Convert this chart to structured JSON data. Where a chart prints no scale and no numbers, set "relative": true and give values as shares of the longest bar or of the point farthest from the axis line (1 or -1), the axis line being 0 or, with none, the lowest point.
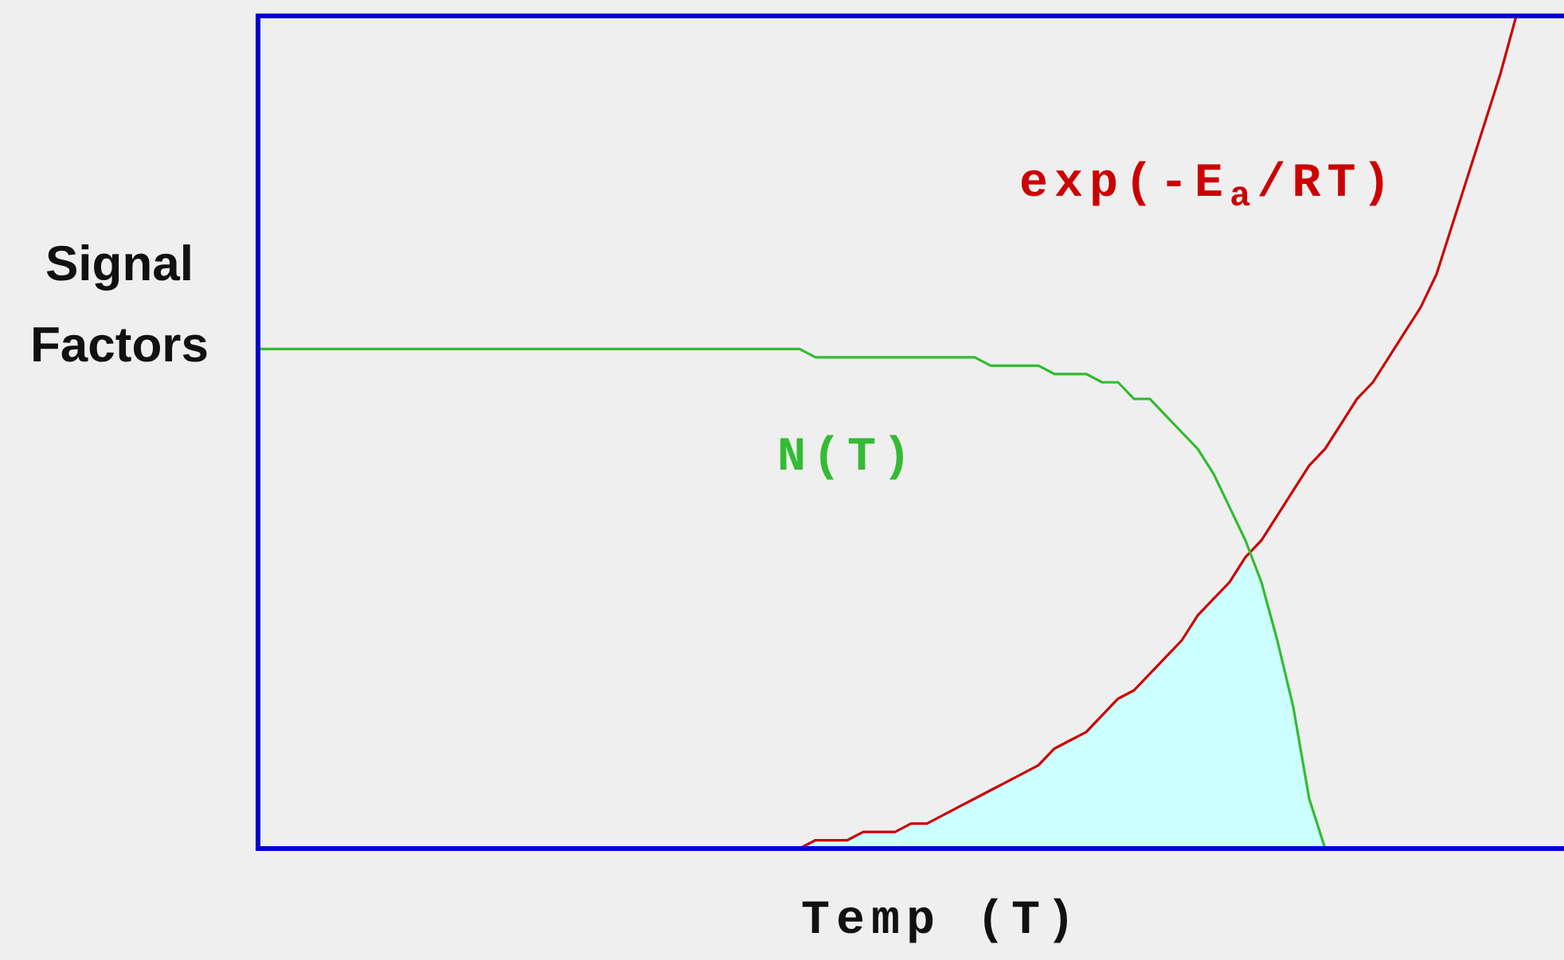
{
  "chart_data": {
    "type": "line",
    "relative": true,
    "xlabel": "Temp (T)",
    "ylabel": "Signal Factors",
    "categories": [
      null,
      null,
      null,
      null,
      null,
      null,
      null,
      null,
      null,
      null,
      null,
      null,
      null,
      null,
      null,
      null,
      null,
      null,
      null,
      null,
      null,
      null,
      null,
      null,
      null,
      null,
      null,
      null,
      null,
      null,
      null,
      null,
      null,
      null,
      null,
      null,
      null,
      null,
      null,
      null,
      null,
      null,
      null,
      null,
      null,
      null,
      null,
      null,
      null,
      null,
      null,
      null,
      null,
      null,
      null,
      null,
      null,
      null,
      null,
      null,
      null,
      null,
      null,
      null,
      null,
      null,
      null,
      null,
      null,
      null,
      null,
      null,
      null,
      null,
      null,
      null,
      null,
      null,
      null,
      null,
      null,
      null,
      null
    ],
    "series": [
      {
        "name": "N(T)",
        "color": "#33bb33",
        "values": [
          0.6,
          0.6,
          0.6,
          0.6,
          0.6,
          0.6,
          0.6,
          0.6,
          0.6,
          0.6,
          0.6,
          0.6,
          0.6,
          0.6,
          0.6,
          0.6,
          0.6,
          0.6,
          0.6,
          0.6,
          0.6,
          0.6,
          0.6,
          0.6,
          0.6,
          0.6,
          0.6,
          0.6,
          0.6,
          0.6,
          0.6,
          0.6,
          0.6,
          0.6,
          0.6,
          0.59,
          0.59,
          0.59,
          0.59,
          0.59,
          0.59,
          0.59,
          0.59,
          0.59,
          0.59,
          0.59,
          0.58,
          0.58,
          0.58,
          0.58,
          0.57,
          0.57,
          0.57,
          0.56,
          0.56,
          0.54,
          0.54,
          0.52,
          0.5,
          0.48,
          0.45,
          0.41,
          0.37,
          0.32,
          0.25,
          0.17,
          0.06,
          0,
          null,
          null,
          null,
          null,
          null,
          null,
          null,
          null,
          null,
          null,
          null,
          null,
          null,
          null,
          null
        ]
      },
      {
        "name": "exp(-E$_{a}$/RT)",
        "color": "#cc0000",
        "values": [
          null,
          null,
          null,
          null,
          null,
          null,
          null,
          null,
          null,
          null,
          null,
          null,
          null,
          null,
          null,
          null,
          null,
          null,
          null,
          null,
          null,
          null,
          null,
          null,
          null,
          null,
          null,
          null,
          null,
          null,
          null,
          null,
          0,
          0,
          0,
          0.01,
          0.01,
          0.01,
          0.02,
          0.02,
          0.02,
          0.03,
          0.03,
          0.04,
          0.05,
          0.06,
          0.07,
          0.08,
          0.09,
          0.1,
          0.12,
          0.13,
          0.14,
          0.16,
          0.18,
          0.19,
          0.21,
          0.23,
          0.25,
          0.28,
          0.3,
          0.32,
          0.35,
          0.37,
          0.4,
          0.43,
          0.46,
          0.48,
          0.51,
          0.54,
          0.56,
          0.59,
          0.62,
          0.65,
          0.69,
          0.75,
          0.81,
          0.87,
          0.93,
          1,
          null,
          null,
          null
        ]
      },
      {
        "type": "area",
        "color": "#ccffff",
        "values": [
          null,
          null,
          null,
          null,
          null,
          null,
          null,
          null,
          null,
          null,
          null,
          null,
          null,
          null,
          null,
          null,
          null,
          null,
          null,
          null,
          null,
          null,
          null,
          null,
          null,
          null,
          null,
          null,
          null,
          null,
          null,
          null,
          0,
          0,
          0,
          0.01,
          0.01,
          0.01,
          0.02,
          0.02,
          0.02,
          0.03,
          0.03,
          0.04,
          0.05,
          0.06,
          0.07,
          0.08,
          0.09,
          0.1,
          0.12,
          0.13,
          0.14,
          0.16,
          0.18,
          0.19,
          0.21,
          0.23,
          0.25,
          0.28,
          0.3,
          0.32,
          0.35,
          0.32,
          0.25,
          0.17,
          0.06,
          0,
          null,
          null,
          null,
          null,
          null,
          null,
          null,
          null,
          null,
          null,
          null,
          null,
          null,
          null,
          null
        ]
      }
    ]
  }
}
